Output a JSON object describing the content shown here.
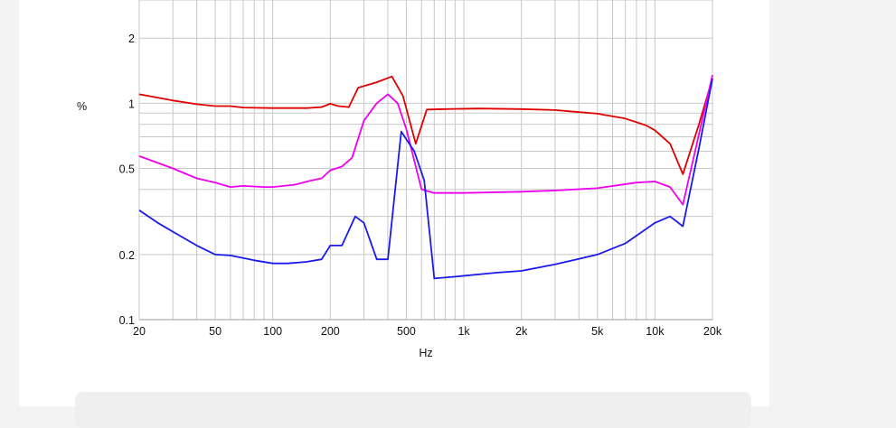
{
  "chart_data": {
    "type": "line",
    "xlabel": "Hz",
    "ylabel": "%",
    "xscale": "log",
    "yscale": "log",
    "xlim": [
      20,
      20000
    ],
    "ylim": [
      0.1,
      3
    ],
    "grid": true,
    "x_ticks": [
      20,
      50,
      100,
      200,
      500,
      1000,
      2000,
      5000,
      10000,
      20000
    ],
    "x_tick_labels": [
      "20",
      "50",
      "100",
      "200",
      "500",
      "1k",
      "2k",
      "5k",
      "10k",
      "20k"
    ],
    "y_ticks": [
      0.1,
      0.2,
      0.5,
      1,
      2
    ],
    "y_tick_labels": [
      "0.1",
      "0.2",
      "0.5",
      "1",
      "2"
    ],
    "series": [
      {
        "color": "#e00000",
        "points": [
          [
            20,
            1.1
          ],
          [
            30,
            1.03
          ],
          [
            40,
            0.99
          ],
          [
            50,
            0.97
          ],
          [
            60,
            0.97
          ],
          [
            70,
            0.955
          ],
          [
            100,
            0.95
          ],
          [
            150,
            0.95
          ],
          [
            180,
            0.96
          ],
          [
            200,
            0.995
          ],
          [
            220,
            0.97
          ],
          [
            250,
            0.96
          ],
          [
            280,
            1.18
          ],
          [
            350,
            1.25
          ],
          [
            420,
            1.33
          ],
          [
            480,
            1.08
          ],
          [
            560,
            0.65
          ],
          [
            640,
            0.935
          ],
          [
            800,
            0.94
          ],
          [
            1200,
            0.945
          ],
          [
            2000,
            0.94
          ],
          [
            3000,
            0.93
          ],
          [
            5000,
            0.895
          ],
          [
            7000,
            0.85
          ],
          [
            9000,
            0.79
          ],
          [
            10000,
            0.75
          ],
          [
            12000,
            0.65
          ],
          [
            14000,
            0.47
          ],
          [
            17000,
            0.8
          ],
          [
            20000,
            1.3
          ]
        ]
      },
      {
        "color": "#ee00ee",
        "points": [
          [
            20,
            0.57
          ],
          [
            30,
            0.5
          ],
          [
            40,
            0.45
          ],
          [
            50,
            0.43
          ],
          [
            60,
            0.41
          ],
          [
            70,
            0.415
          ],
          [
            90,
            0.41
          ],
          [
            100,
            0.41
          ],
          [
            130,
            0.42
          ],
          [
            160,
            0.44
          ],
          [
            180,
            0.45
          ],
          [
            200,
            0.49
          ],
          [
            230,
            0.51
          ],
          [
            260,
            0.56
          ],
          [
            300,
            0.83
          ],
          [
            350,
            1.0
          ],
          [
            400,
            1.1
          ],
          [
            450,
            1.0
          ],
          [
            500,
            0.76
          ],
          [
            600,
            0.4
          ],
          [
            700,
            0.385
          ],
          [
            1000,
            0.385
          ],
          [
            2000,
            0.39
          ],
          [
            3000,
            0.395
          ],
          [
            5000,
            0.405
          ],
          [
            8000,
            0.43
          ],
          [
            10000,
            0.435
          ],
          [
            12000,
            0.41
          ],
          [
            14000,
            0.34
          ],
          [
            17000,
            0.72
          ],
          [
            20000,
            1.35
          ]
        ]
      },
      {
        "color": "#1a1aee",
        "points": [
          [
            20,
            0.32
          ],
          [
            25,
            0.28
          ],
          [
            30,
            0.255
          ],
          [
            40,
            0.22
          ],
          [
            50,
            0.2
          ],
          [
            60,
            0.198
          ],
          [
            80,
            0.188
          ],
          [
            100,
            0.182
          ],
          [
            120,
            0.182
          ],
          [
            150,
            0.185
          ],
          [
            180,
            0.19
          ],
          [
            200,
            0.22
          ],
          [
            230,
            0.22
          ],
          [
            270,
            0.3
          ],
          [
            300,
            0.28
          ],
          [
            350,
            0.19
          ],
          [
            400,
            0.19
          ],
          [
            470,
            0.74
          ],
          [
            550,
            0.6
          ],
          [
            620,
            0.44
          ],
          [
            700,
            0.155
          ],
          [
            900,
            0.158
          ],
          [
            1500,
            0.165
          ],
          [
            2000,
            0.168
          ],
          [
            3000,
            0.18
          ],
          [
            5000,
            0.2
          ],
          [
            7000,
            0.225
          ],
          [
            10000,
            0.28
          ],
          [
            12000,
            0.3
          ],
          [
            14000,
            0.27
          ],
          [
            17000,
            0.62
          ],
          [
            20000,
            1.3
          ]
        ]
      }
    ]
  }
}
